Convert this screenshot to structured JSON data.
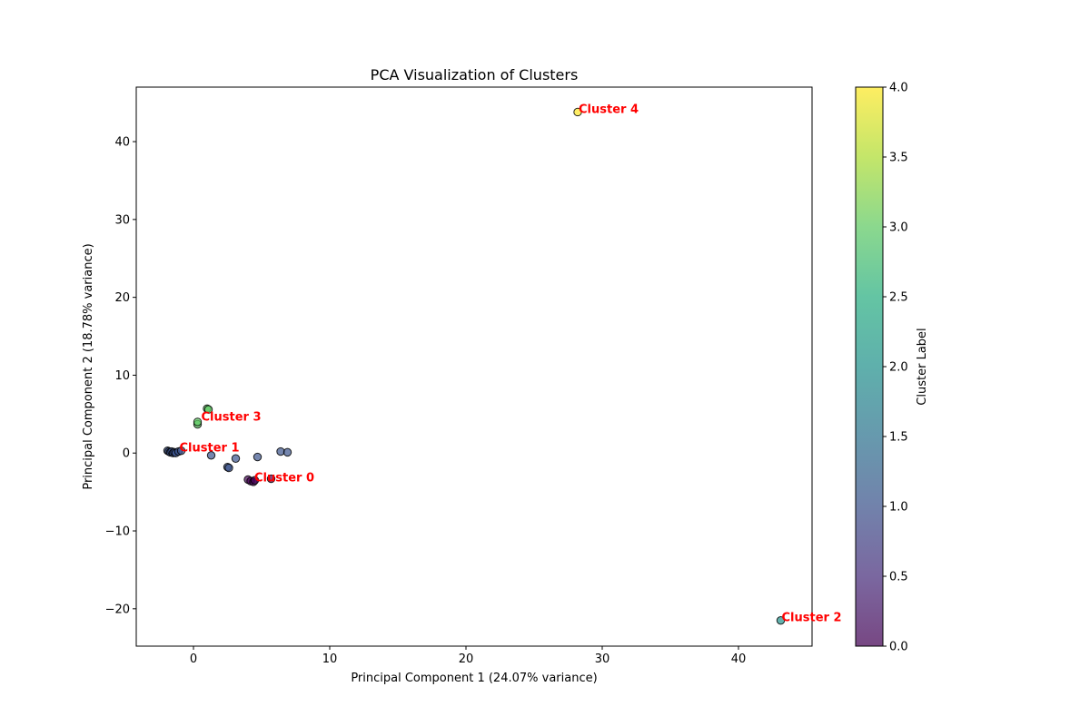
{
  "chart_data": {
    "type": "scatter",
    "title": "PCA Visualization of Clusters",
    "xlabel": "Principal Component 1 (24.07% variance)",
    "ylabel": "Principal Component 2 (18.78% variance)",
    "xlim": [
      -4.2,
      45.4
    ],
    "ylim": [
      -24.8,
      47.0
    ],
    "xticks": [
      0,
      10,
      20,
      30,
      40
    ],
    "yticks": [
      -20,
      -10,
      0,
      10,
      20,
      30,
      40
    ],
    "xtick_labels": [
      "0",
      "10",
      "20",
      "30",
      "40"
    ],
    "ytick_labels": [
      "−20",
      "−10",
      "0",
      "10",
      "20",
      "30",
      "40"
    ],
    "grid": false,
    "colormap": "viridis",
    "colorbar": {
      "label": "Cluster Label",
      "range": [
        0.0,
        4.0
      ],
      "ticks": [
        0.0,
        0.5,
        1.0,
        1.5,
        2.0,
        2.5,
        3.0,
        3.5,
        4.0
      ],
      "tick_labels": [
        "0.0",
        "0.5",
        "1.0",
        "1.5",
        "2.0",
        "2.5",
        "3.0",
        "3.5",
        "4.0"
      ]
    },
    "point_alpha": 0.7,
    "point_edge_color": "#000000",
    "points": [
      {
        "x": 4.0,
        "y": -3.4,
        "cluster": 0
      },
      {
        "x": 4.2,
        "y": -3.6,
        "cluster": 0
      },
      {
        "x": 4.4,
        "y": -3.7,
        "cluster": 0
      },
      {
        "x": 4.5,
        "y": -3.5,
        "cluster": 0
      },
      {
        "x": 5.7,
        "y": -3.3,
        "cluster": 0
      },
      {
        "x": -1.9,
        "y": 0.3,
        "cluster": 1
      },
      {
        "x": -1.8,
        "y": 0.2,
        "cluster": 1
      },
      {
        "x": -1.7,
        "y": 0.1,
        "cluster": 1
      },
      {
        "x": -1.6,
        "y": 0.2,
        "cluster": 1
      },
      {
        "x": -1.5,
        "y": 0.0,
        "cluster": 1
      },
      {
        "x": -1.4,
        "y": 0.1,
        "cluster": 1
      },
      {
        "x": -1.3,
        "y": 0.0,
        "cluster": 1
      },
      {
        "x": -1.1,
        "y": 0.2,
        "cluster": 1
      },
      {
        "x": -0.9,
        "y": 0.3,
        "cluster": 1
      },
      {
        "x": 1.3,
        "y": -0.3,
        "cluster": 1
      },
      {
        "x": 2.5,
        "y": -1.8,
        "cluster": 1
      },
      {
        "x": 2.6,
        "y": -1.9,
        "cluster": 1
      },
      {
        "x": 3.1,
        "y": -0.7,
        "cluster": 1
      },
      {
        "x": 4.7,
        "y": -0.5,
        "cluster": 1
      },
      {
        "x": 6.4,
        "y": 0.2,
        "cluster": 1
      },
      {
        "x": 6.9,
        "y": 0.1,
        "cluster": 1
      },
      {
        "x": 43.1,
        "y": -21.5,
        "cluster": 2
      },
      {
        "x": 0.3,
        "y": 3.7,
        "cluster": 3
      },
      {
        "x": 0.3,
        "y": 4.0,
        "cluster": 3
      },
      {
        "x": 1.0,
        "y": 5.7,
        "cluster": 3
      },
      {
        "x": 1.1,
        "y": 5.6,
        "cluster": 3
      },
      {
        "x": 28.2,
        "y": 43.8,
        "cluster": 4
      }
    ],
    "annotations": [
      {
        "text": "Cluster 0",
        "x": 4.4,
        "y": -3.5,
        "color": "#ff0000"
      },
      {
        "text": "Cluster 1",
        "x": -1.1,
        "y": 0.3,
        "color": "#ff0000"
      },
      {
        "text": "Cluster 2",
        "x": 43.1,
        "y": -21.5,
        "color": "#ff0000"
      },
      {
        "text": "Cluster 3",
        "x": 0.5,
        "y": 4.3,
        "color": "#ff0000"
      },
      {
        "text": "Cluster 4",
        "x": 28.2,
        "y": 43.8,
        "color": "#ff0000"
      }
    ]
  }
}
